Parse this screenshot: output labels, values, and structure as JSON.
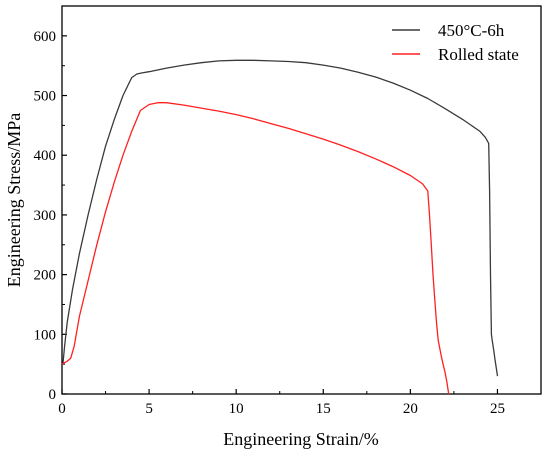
{
  "chart_data": {
    "type": "line",
    "xlabel": "Engineering Strain/%",
    "ylabel": "Engineering Stress/MPa",
    "xlim": [
      0,
      27.5
    ],
    "ylim": [
      0,
      650
    ],
    "x_ticks": [
      0,
      5,
      10,
      15,
      20,
      25
    ],
    "y_ticks": [
      0,
      100,
      200,
      300,
      400,
      500,
      600
    ],
    "x_tick_labels": [
      "0",
      "5",
      "10",
      "15",
      "20",
      "25"
    ],
    "y_tick_labels": [
      "0",
      "100",
      "200",
      "300",
      "400",
      "500",
      "600"
    ],
    "legend": "top-right",
    "series": [
      {
        "name": "450°C-6h",
        "color": "#3a3a3a",
        "x": [
          0.05,
          0.15,
          0.3,
          0.6,
          1.0,
          1.5,
          2.0,
          2.5,
          3.0,
          3.5,
          4.0,
          4.3,
          4.6,
          5.0,
          6.0,
          7.0,
          8.0,
          9.0,
          10.0,
          11.0,
          12.0,
          13.0,
          14.0,
          15.0,
          16.0,
          17.0,
          18.0,
          19.0,
          20.0,
          21.0,
          22.0,
          23.0,
          23.5,
          24.0,
          24.3,
          24.5,
          24.55,
          24.6,
          24.65,
          24.7,
          24.75,
          24.8,
          24.85,
          24.9,
          24.95,
          25.0
        ],
        "y": [
          50,
          80,
          120,
          175,
          235,
          300,
          360,
          415,
          460,
          500,
          530,
          536,
          538,
          540,
          546,
          551,
          555,
          558,
          559,
          559,
          558,
          557,
          555,
          551,
          546,
          539,
          531,
          521,
          509,
          495,
          478,
          460,
          450,
          440,
          430,
          420,
          340,
          200,
          100,
          90,
          80,
          70,
          60,
          50,
          40,
          30
        ]
      },
      {
        "name": "Rolled state",
        "color": "#ff2020",
        "x": [
          0.0,
          0.3,
          0.5,
          0.7,
          1.0,
          1.5,
          2.0,
          2.5,
          3.0,
          3.5,
          4.0,
          4.5,
          5.0,
          5.5,
          6.0,
          7.0,
          8.0,
          9.0,
          10.0,
          11.0,
          12.0,
          13.0,
          14.0,
          15.0,
          16.0,
          17.0,
          18.0,
          19.0,
          20.0,
          20.7,
          21.0,
          21.1,
          21.2,
          21.3,
          21.4,
          21.5,
          21.6,
          21.8,
          22.0,
          22.1,
          22.2
        ],
        "y": [
          50,
          55,
          60,
          80,
          130,
          190,
          250,
          305,
          355,
          400,
          440,
          475,
          485,
          488,
          488,
          484,
          479,
          474,
          468,
          461,
          453,
          445,
          436,
          427,
          417,
          406,
          394,
          381,
          366,
          352,
          340,
          300,
          250,
          200,
          160,
          120,
          90,
          60,
          35,
          20,
          0
        ]
      }
    ]
  }
}
